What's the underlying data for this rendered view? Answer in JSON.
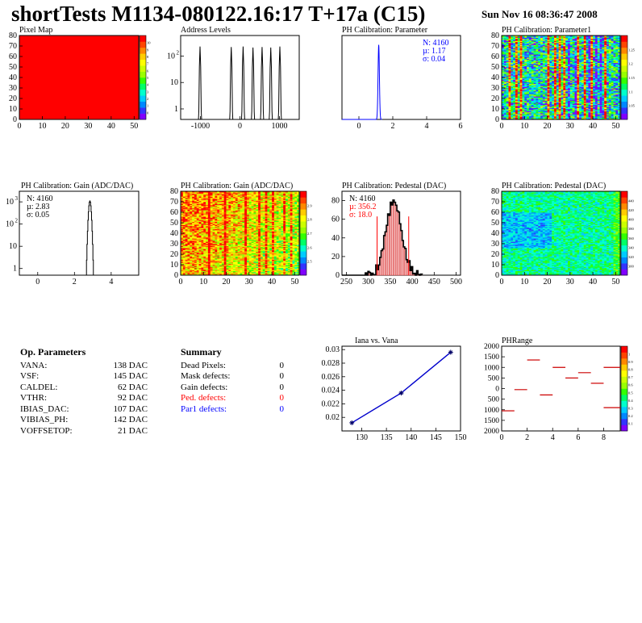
{
  "header": {
    "title": "shortTests M1134-080122.16:17 T+17a (C15)",
    "date": "Sun Nov 16 08:36:47 2008"
  },
  "op_parameters": {
    "heading": "Op. Parameters",
    "rows": [
      {
        "label": "VANA:",
        "value": "138 DAC"
      },
      {
        "label": "VSF:",
        "value": "145 DAC"
      },
      {
        "label": "CALDEL:",
        "value": "62 DAC"
      },
      {
        "label": "VTHR:",
        "value": "92 DAC"
      },
      {
        "label": "IBIAS_DAC:",
        "value": "107 DAC"
      },
      {
        "label": "VIBIAS_PH:",
        "value": "142 DAC"
      },
      {
        "label": "VOFFSETOP:",
        "value": "21 DAC"
      }
    ]
  },
  "summary": {
    "heading": "Summary",
    "rows": [
      {
        "label": "Dead Pixels:",
        "value": "0",
        "color": "#000000"
      },
      {
        "label": "Mask defects:",
        "value": "0",
        "color": "#000000"
      },
      {
        "label": "Gain defects:",
        "value": "0",
        "color": "#000000"
      },
      {
        "label": "Ped. defects:",
        "value": "0",
        "color": "#ff0000"
      },
      {
        "label": "Par1 defects:",
        "value": "0",
        "color": "#0000ff"
      }
    ]
  },
  "chart_data": [
    {
      "id": "pixel-map",
      "type": "heatmap",
      "title": "Pixel Map",
      "xlim": [
        0,
        52
      ],
      "ylim": [
        0,
        80
      ],
      "xticks": [
        0,
        10,
        20,
        30,
        40,
        50
      ],
      "yticks": [
        0,
        10,
        20,
        30,
        40,
        50,
        60,
        70,
        80
      ],
      "uniform_value": 10,
      "palette": {
        "z": [
          0,
          1,
          2,
          3,
          4,
          5,
          6,
          7,
          8,
          9,
          10
        ],
        "labels": [
          "0",
          "1",
          "2",
          "3",
          "4",
          "5",
          "6",
          "7",
          "8",
          "9",
          "10"
        ]
      }
    },
    {
      "id": "address-levels",
      "type": "bar",
      "title": "Address Levels",
      "xlim": [
        -1500,
        1500
      ],
      "xticks": [
        -1000,
        0,
        1000
      ],
      "yscale": "log",
      "ylim": [
        0.4,
        600
      ],
      "yticks": [
        {
          "v": 1,
          "label": "1"
        },
        {
          "v": 10,
          "label": "10"
        },
        {
          "v": 100,
          "label": "10",
          "sup": "2"
        }
      ],
      "peaks": [
        {
          "x": -1010,
          "h": 230
        },
        {
          "x": -220,
          "h": 220
        },
        {
          "x": 80,
          "h": 230
        },
        {
          "x": 330,
          "h": 210
        },
        {
          "x": 560,
          "h": 220
        },
        {
          "x": 780,
          "h": 210
        },
        {
          "x": 1010,
          "h": 230
        }
      ]
    },
    {
      "id": "ph-cal-parameter",
      "type": "bar",
      "title": "PH Calibration: Parameter",
      "xlim": [
        -1,
        6
      ],
      "xticks": [
        0,
        2,
        4,
        6
      ],
      "ylim": [
        0,
        900
      ],
      "mean": 1.17,
      "sigma": 0.04,
      "entries": 4160,
      "stats": {
        "color": "#0000ff",
        "lines": [
          "N: 4160",
          "µ: 1.17",
          "σ: 0.04"
        ]
      }
    },
    {
      "id": "ph-cal-parameter1",
      "type": "heatmap",
      "title": "PH Calibration: Parameter1",
      "xlim": [
        0,
        52
      ],
      "ylim": [
        0,
        80
      ],
      "xticks": [
        0,
        10,
        20,
        30,
        40,
        50
      ],
      "yticks": [
        0,
        10,
        20,
        30,
        40,
        50,
        60,
        70,
        80
      ],
      "palette": {
        "z": [
          0,
          0.2,
          0.4,
          0.6,
          0.8,
          1.0,
          1.2,
          1.4,
          1.6
        ],
        "labels": [
          "1.05",
          "1.1",
          "1.15",
          "1.2",
          "1.25"
        ],
        "zmin": 1.0,
        "zmax": 1.28
      }
    },
    {
      "id": "ph-cal-gain",
      "type": "bar",
      "title": "PH Calibration: Gain (ADC/DAC)",
      "xlim": [
        -1,
        5.5
      ],
      "xticks": [
        0,
        2,
        4
      ],
      "yscale": "log",
      "ylim": [
        0.5,
        3000
      ],
      "yticks": [
        {
          "v": 1,
          "label": "1"
        },
        {
          "v": 10,
          "label": "10"
        },
        {
          "v": 100,
          "label": "10",
          "sup": "2"
        },
        {
          "v": 1000,
          "label": "10",
          "sup": "3"
        }
      ],
      "mean": 2.83,
      "sigma": 0.05,
      "entries": 4160,
      "stats": {
        "color": "#000000",
        "lines": [
          "N: 4160",
          "µ: 2.83",
          "σ: 0.05"
        ]
      }
    },
    {
      "id": "ph-cal-gain-map",
      "type": "heatmap",
      "title": "PH Calibration: Gain (ADC/DAC)",
      "xlim": [
        0,
        52
      ],
      "ylim": [
        0,
        80
      ],
      "xticks": [
        0,
        10,
        20,
        30,
        40,
        50
      ],
      "yticks": [
        0,
        10,
        20,
        30,
        40,
        50,
        60,
        70,
        80
      ],
      "palette": {
        "labels": [
          "2.5",
          "2.6",
          "2.7",
          "2.8",
          "2.9"
        ],
        "zmin": 2.45,
        "zmax": 2.95
      }
    },
    {
      "id": "ph-cal-pedestal",
      "type": "bar",
      "title": "PH Calibration: Pedestal (DAC)",
      "xlim": [
        240,
        510
      ],
      "xticks": [
        250,
        300,
        350,
        400,
        450,
        500
      ],
      "ylim": [
        0,
        90
      ],
      "yticks": [
        0,
        20,
        40,
        60,
        80
      ],
      "mean": 356.2,
      "sigma": 18.0,
      "entries": 4160,
      "cut_lines": [
        320,
        392
      ],
      "stats": {
        "color": "#ff0000",
        "n_color": "#000000",
        "lines": [
          "N: 4160",
          "µ: 356.2",
          "σ: 18.0"
        ]
      }
    },
    {
      "id": "ph-cal-pedestal-map",
      "type": "heatmap",
      "title": "PH Calibration: Pedestal (DAC)",
      "xlim": [
        0,
        52
      ],
      "ylim": [
        0,
        80
      ],
      "xticks": [
        0,
        10,
        20,
        30,
        40,
        50
      ],
      "yticks": [
        0,
        10,
        20,
        30,
        40,
        50,
        60,
        70,
        80
      ],
      "palette": {
        "labels": [
          "300",
          "320",
          "340",
          "360",
          "380",
          "400",
          "420",
          "440"
        ],
        "zmin": 290,
        "zmax": 450
      }
    },
    {
      "id": "iana-vs-vana",
      "type": "line",
      "title": "Iana vs. Vana",
      "xlim": [
        126,
        150
      ],
      "xticks": [
        130,
        135,
        140,
        145,
        150
      ],
      "ylim": [
        0.018,
        0.0305
      ],
      "yticks": [
        0.02,
        0.022,
        0.024,
        0.026,
        0.028,
        0.03
      ],
      "x": [
        128,
        138,
        148
      ],
      "y": [
        0.0192,
        0.0236,
        0.0296
      ]
    },
    {
      "id": "phrange",
      "type": "scatter",
      "title": "PHRange",
      "xlim": [
        0,
        9.3
      ],
      "xticks": [
        0,
        2,
        4,
        6,
        8
      ],
      "ylim": [
        -2000,
        2000
      ],
      "yticks": [
        -2000,
        -1500,
        -1000,
        -500,
        0,
        500,
        1000,
        1500,
        2000
      ],
      "ytick_labels": [
        "2000",
        "1500",
        "1000",
        "500",
        "0",
        "500",
        "1000",
        "1500",
        "2000"
      ],
      "segments": [
        {
          "x0": 0,
          "x1": 1,
          "y": -1050
        },
        {
          "x0": 1,
          "x1": 2,
          "y": -50
        },
        {
          "x0": 2,
          "x1": 3,
          "y": 1350
        },
        {
          "x0": 3,
          "x1": 4,
          "y": -300
        },
        {
          "x0": 4,
          "x1": 5,
          "y": 1000
        },
        {
          "x0": 5,
          "x1": 6,
          "y": 500
        },
        {
          "x0": 6,
          "x1": 7,
          "y": 750
        },
        {
          "x0": 7,
          "x1": 8,
          "y": 250
        },
        {
          "x0": 8,
          "x1": 9.3,
          "y": 1000
        },
        {
          "x0": 8,
          "x1": 9.3,
          "y": -900
        }
      ],
      "palette": {
        "labels": [
          "0.1",
          "0.2",
          "0.3",
          "0.4",
          "0.5",
          "0.6",
          "0.7",
          "0.8",
          "0.9",
          "1"
        ]
      }
    }
  ]
}
